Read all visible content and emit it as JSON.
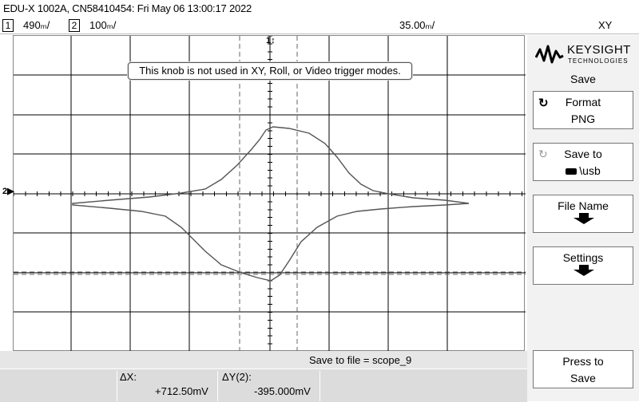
{
  "header": {
    "title": "EDU-X 1002A, CN58410454: Fri May 06 13:00:17 2022"
  },
  "status": {
    "ch1_num": "1",
    "ch1_scale": "490ₘ/",
    "ch2_num": "2",
    "ch2_scale": "100ₘ/",
    "timebase": "35.00ₘ/",
    "mode": "XY"
  },
  "overlay": {
    "message": "This knob is not used in XY, Roll, or Video trigger modes."
  },
  "markers": {
    "ch1": "1",
    "ch2": "2"
  },
  "bottom": {
    "save_to_file": "Save to file =  scope_9",
    "dx_label": "ΔX:",
    "dx_value": "+712.50mV",
    "dy_label": "ΔY(2):",
    "dy_value": "-395.000mV"
  },
  "side": {
    "brand": "KEYSIGHT",
    "brand_sub": "TECHNOLOGIES",
    "menu_title": "Save",
    "softkeys": [
      {
        "label": "Format",
        "value": "PNG"
      },
      {
        "label": "Save to",
        "value": "\\usb"
      },
      {
        "label": "File Name"
      },
      {
        "label": "Settings"
      },
      {
        "label": "Press to",
        "value": "Save"
      }
    ]
  }
}
